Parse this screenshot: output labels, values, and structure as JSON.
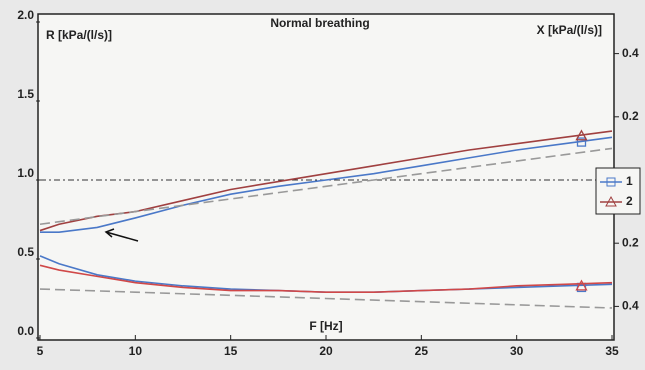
{
  "chart_data": {
    "type": "line",
    "title": "Normal breathing",
    "y_label": "R [kPa/(l/s)]",
    "y2_label": "X [kPa/(l/s)]",
    "x_label": "F [Hz]",
    "x": [
      5,
      6,
      8,
      10,
      12.5,
      15,
      17.5,
      20,
      22.5,
      25,
      27.5,
      30,
      32.5,
      35
    ],
    "xlim": [
      5,
      35
    ],
    "xticks": [
      5,
      10,
      15,
      20,
      25,
      30,
      35
    ],
    "ylim": [
      0,
      2
    ],
    "yticks": [
      {
        "value": 0,
        "label": "0.0"
      },
      0.5,
      {
        "value": 1,
        "label": "1.0"
      },
      1.5,
      {
        "value": 2,
        "label": "2.0"
      }
    ],
    "y2lim": [
      -0.5,
      0.5
    ],
    "y2ticks": [
      {
        "value": -0.4,
        "label": "0.4"
      },
      {
        "value": -0.2,
        "label": "0.2"
      },
      0.2,
      0.4
    ],
    "hline": 1,
    "series": [
      {
        "name": "1",
        "color": "#4a78c8",
        "marker_shape": "square",
        "marker": {
          "x": 33.4,
          "y": 1.24
        },
        "values": [
          0.67,
          0.67,
          0.7,
          0.76,
          0.84,
          0.91,
          0.96,
          1.0,
          1.04,
          1.09,
          1.14,
          1.19,
          1.23,
          1.27
        ]
      },
      {
        "name": "2",
        "color": "#a04040",
        "marker_shape": "triangle",
        "marker": {
          "x": 33.4,
          "y": 1.28
        },
        "values": [
          0.68,
          0.72,
          0.77,
          0.8,
          0.87,
          0.94,
          0.99,
          1.04,
          1.09,
          1.14,
          1.19,
          1.23,
          1.27,
          1.31
        ]
      },
      {
        "color": "#4a78c8",
        "marker_shape": "square",
        "marker": {
          "x": 33.4,
          "y": 0.32
        },
        "values": [
          0.52,
          0.47,
          0.4,
          0.36,
          0.33,
          0.31,
          0.3,
          0.29,
          0.29,
          0.3,
          0.31,
          0.32,
          0.33,
          0.34
        ]
      },
      {
        "color": "#d04848",
        "marker_shape": "triangle",
        "marker": {
          "x": 33.4,
          "y": 0.33
        },
        "values": [
          0.46,
          0.43,
          0.39,
          0.35,
          0.32,
          0.3,
          0.3,
          0.29,
          0.29,
          0.3,
          0.31,
          0.33,
          0.34,
          0.35
        ]
      },
      {
        "color": "#999999",
        "dashed": true,
        "values": [
          0.72,
          0.736,
          0.768,
          0.8,
          0.84,
          0.88,
          0.92,
          0.96,
          1.0,
          1.04,
          1.08,
          1.12,
          1.16,
          1.2
        ]
      },
      {
        "color": "#999999",
        "dashed": true,
        "values": [
          0.31,
          0.306,
          0.298,
          0.29,
          0.28,
          0.27,
          0.26,
          0.25,
          0.24,
          0.23,
          0.22,
          0.21,
          0.2,
          0.19
        ]
      }
    ]
  }
}
